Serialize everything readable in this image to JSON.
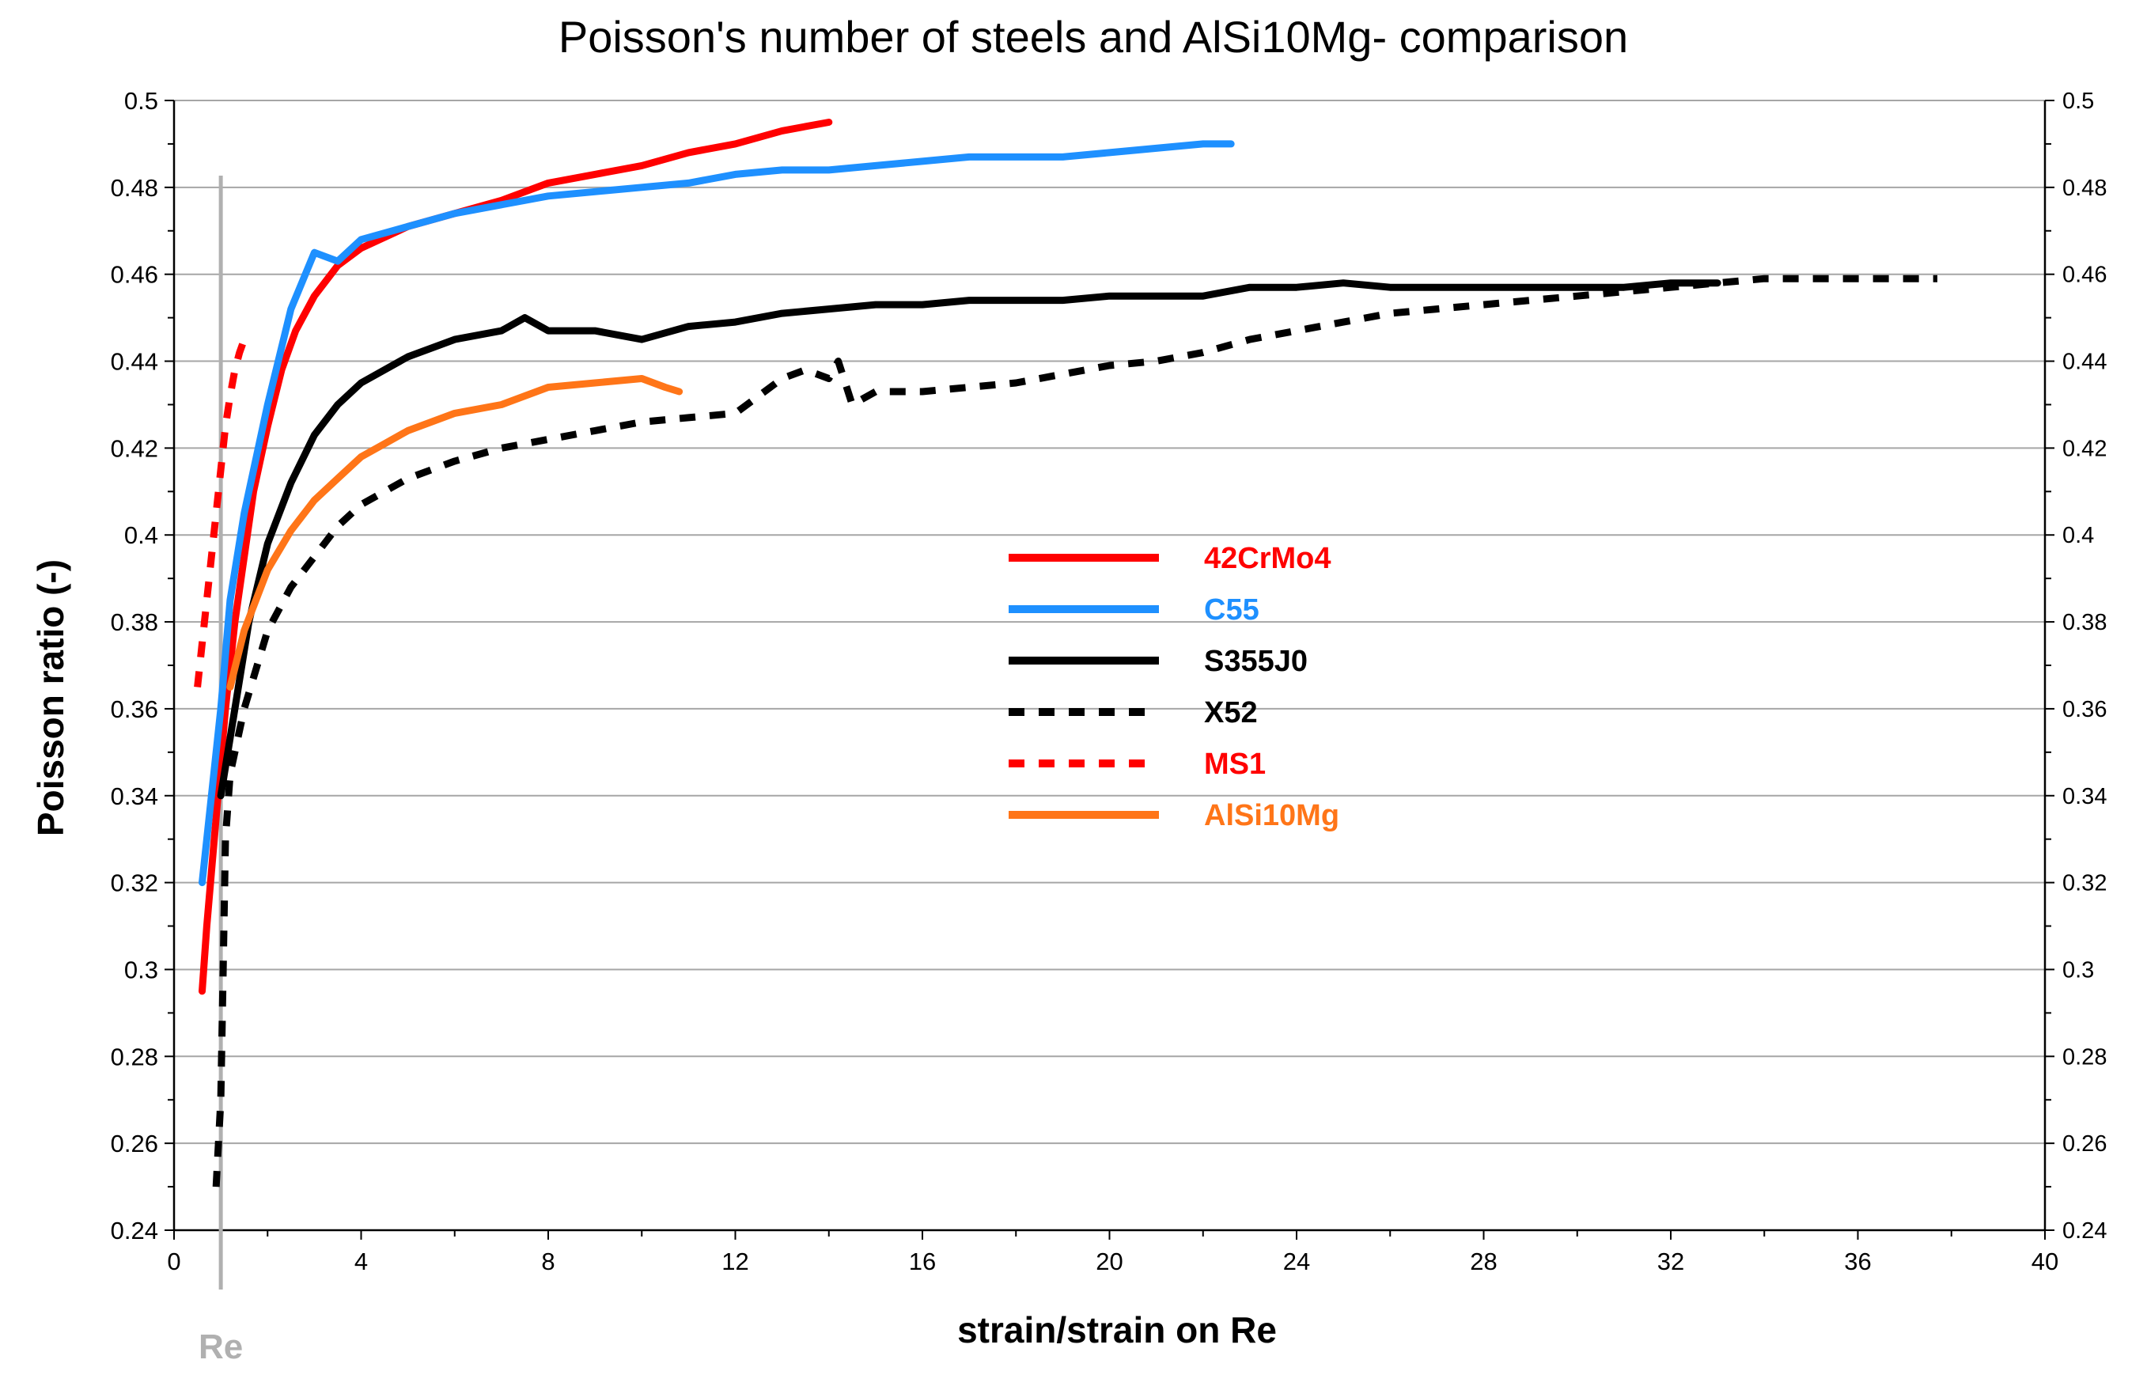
{
  "chart_data": {
    "type": "line",
    "title": "Poisson's number of steels and AlSi10Mg- comparison",
    "xlabel": "strain/strain on Re",
    "ylabel": "Poisson ratio (-)",
    "xlim": [
      0,
      40
    ],
    "ylim": [
      0.24,
      0.5
    ],
    "x_ticks": [
      "0",
      "4",
      "8",
      "12",
      "16",
      "20",
      "24",
      "28",
      "32",
      "36",
      "40"
    ],
    "y_ticks_left": [
      "0.24",
      "0.26",
      "0.28",
      "0.3",
      "0.32",
      "0.34",
      "0.36",
      "0.38",
      "0.4",
      "0.42",
      "0.44",
      "0.46",
      "0.48",
      "0.5"
    ],
    "y_ticks_right": [
      "0.24",
      "0.26",
      "0.28",
      "0.3",
      "0.32",
      "0.34",
      "0.36",
      "0.38",
      "0.4",
      "0.42",
      "0.44",
      "0.46",
      "0.48",
      "0.5"
    ],
    "grid": "horizontal",
    "legend_position": "center",
    "reference_line": {
      "label": "Re",
      "x": 1.0,
      "color": "#b0b0b0"
    },
    "series": [
      {
        "name": "42CrMo4",
        "color": "#ff0000",
        "dash": "solid",
        "points": [
          [
            0.6,
            0.295
          ],
          [
            0.7,
            0.31
          ],
          [
            0.9,
            0.335
          ],
          [
            1.1,
            0.36
          ],
          [
            1.3,
            0.38
          ],
          [
            1.5,
            0.395
          ],
          [
            1.7,
            0.41
          ],
          [
            2.0,
            0.425
          ],
          [
            2.3,
            0.438
          ],
          [
            2.6,
            0.447
          ],
          [
            3.0,
            0.455
          ],
          [
            3.5,
            0.462
          ],
          [
            4.0,
            0.466
          ],
          [
            5.0,
            0.471
          ],
          [
            6.0,
            0.474
          ],
          [
            7.0,
            0.477
          ],
          [
            8.0,
            0.481
          ],
          [
            9.0,
            0.483
          ],
          [
            10.0,
            0.485
          ],
          [
            11.0,
            0.488
          ],
          [
            12.0,
            0.49
          ],
          [
            13.0,
            0.493
          ],
          [
            14.0,
            0.495
          ]
        ]
      },
      {
        "name": "C55",
        "color": "#1e90ff",
        "dash": "solid",
        "points": [
          [
            0.6,
            0.32
          ],
          [
            0.8,
            0.34
          ],
          [
            1.0,
            0.36
          ],
          [
            1.2,
            0.385
          ],
          [
            1.5,
            0.405
          ],
          [
            2.0,
            0.43
          ],
          [
            2.5,
            0.452
          ],
          [
            3.0,
            0.465
          ],
          [
            3.5,
            0.463
          ],
          [
            4.0,
            0.468
          ],
          [
            5.0,
            0.471
          ],
          [
            6.0,
            0.474
          ],
          [
            7.0,
            0.476
          ],
          [
            8.0,
            0.478
          ],
          [
            9.0,
            0.479
          ],
          [
            10.0,
            0.48
          ],
          [
            11.0,
            0.481
          ],
          [
            12.0,
            0.483
          ],
          [
            13.0,
            0.484
          ],
          [
            14.0,
            0.484
          ],
          [
            15.0,
            0.485
          ],
          [
            16.0,
            0.486
          ],
          [
            17.0,
            0.487
          ],
          [
            18.0,
            0.487
          ],
          [
            19.0,
            0.487
          ],
          [
            20.0,
            0.488
          ],
          [
            21.0,
            0.489
          ],
          [
            22.0,
            0.49
          ],
          [
            22.6,
            0.49
          ]
        ]
      },
      {
        "name": "S355J0",
        "color": "#000000",
        "dash": "solid",
        "points": [
          [
            1.0,
            0.34
          ],
          [
            1.3,
            0.36
          ],
          [
            1.6,
            0.38
          ],
          [
            2.0,
            0.398
          ],
          [
            2.5,
            0.412
          ],
          [
            3.0,
            0.423
          ],
          [
            3.5,
            0.43
          ],
          [
            4.0,
            0.435
          ],
          [
            5.0,
            0.441
          ],
          [
            6.0,
            0.445
          ],
          [
            7.0,
            0.447
          ],
          [
            7.5,
            0.45
          ],
          [
            8.0,
            0.447
          ],
          [
            9.0,
            0.447
          ],
          [
            10.0,
            0.445
          ],
          [
            11.0,
            0.448
          ],
          [
            12.0,
            0.449
          ],
          [
            13.0,
            0.451
          ],
          [
            14.0,
            0.452
          ],
          [
            15.0,
            0.453
          ],
          [
            16.0,
            0.453
          ],
          [
            17.0,
            0.454
          ],
          [
            18.0,
            0.454
          ],
          [
            19.0,
            0.454
          ],
          [
            20.0,
            0.455
          ],
          [
            21.0,
            0.455
          ],
          [
            22.0,
            0.455
          ],
          [
            23.0,
            0.457
          ],
          [
            24.0,
            0.457
          ],
          [
            25.0,
            0.458
          ],
          [
            26.0,
            0.457
          ],
          [
            27.0,
            0.457
          ],
          [
            28.0,
            0.457
          ],
          [
            29.0,
            0.457
          ],
          [
            30.0,
            0.457
          ],
          [
            31.0,
            0.457
          ],
          [
            32.0,
            0.458
          ],
          [
            33.0,
            0.458
          ]
        ]
      },
      {
        "name": "X52",
        "color": "#000000",
        "dash": "dotted",
        "points": [
          [
            0.9,
            0.25
          ],
          [
            1.0,
            0.27
          ],
          [
            1.05,
            0.3
          ],
          [
            1.1,
            0.33
          ],
          [
            1.2,
            0.345
          ],
          [
            1.5,
            0.36
          ],
          [
            2.0,
            0.378
          ],
          [
            2.5,
            0.388
          ],
          [
            3.0,
            0.395
          ],
          [
            3.5,
            0.402
          ],
          [
            4.0,
            0.407
          ],
          [
            5.0,
            0.413
          ],
          [
            6.0,
            0.417
          ],
          [
            7.0,
            0.42
          ],
          [
            8.0,
            0.422
          ],
          [
            9.0,
            0.424
          ],
          [
            10.0,
            0.426
          ],
          [
            11.0,
            0.427
          ],
          [
            12.0,
            0.428
          ],
          [
            12.5,
            0.432
          ],
          [
            13.0,
            0.436
          ],
          [
            13.5,
            0.438
          ],
          [
            14.0,
            0.436
          ],
          [
            14.2,
            0.44
          ],
          [
            14.5,
            0.43
          ],
          [
            15.0,
            0.433
          ],
          [
            16.0,
            0.433
          ],
          [
            17.0,
            0.434
          ],
          [
            18.0,
            0.435
          ],
          [
            19.0,
            0.437
          ],
          [
            20.0,
            0.439
          ],
          [
            21.0,
            0.44
          ],
          [
            22.0,
            0.442
          ],
          [
            23.0,
            0.445
          ],
          [
            24.0,
            0.447
          ],
          [
            25.0,
            0.449
          ],
          [
            26.0,
            0.451
          ],
          [
            27.0,
            0.452
          ],
          [
            28.0,
            0.453
          ],
          [
            29.0,
            0.454
          ],
          [
            30.0,
            0.455
          ],
          [
            31.0,
            0.456
          ],
          [
            32.0,
            0.457
          ],
          [
            33.0,
            0.458
          ],
          [
            34.0,
            0.459
          ],
          [
            35.0,
            0.459
          ],
          [
            36.0,
            0.459
          ],
          [
            37.0,
            0.459
          ],
          [
            37.7,
            0.459
          ]
        ]
      },
      {
        "name": "MS1",
        "color": "#ff0000",
        "dash": "dotted",
        "points": [
          [
            0.5,
            0.365
          ],
          [
            0.6,
            0.375
          ],
          [
            0.7,
            0.385
          ],
          [
            0.8,
            0.395
          ],
          [
            0.9,
            0.405
          ],
          [
            1.0,
            0.415
          ],
          [
            1.1,
            0.425
          ],
          [
            1.2,
            0.432
          ],
          [
            1.3,
            0.438
          ],
          [
            1.4,
            0.442
          ],
          [
            1.5,
            0.445
          ]
        ]
      },
      {
        "name": "AlSi10Mg",
        "color": "#ff7518",
        "dash": "solid",
        "points": [
          [
            1.2,
            0.365
          ],
          [
            1.5,
            0.378
          ],
          [
            2.0,
            0.392
          ],
          [
            2.5,
            0.401
          ],
          [
            3.0,
            0.408
          ],
          [
            3.5,
            0.413
          ],
          [
            4.0,
            0.418
          ],
          [
            4.5,
            0.421
          ],
          [
            5.0,
            0.424
          ],
          [
            6.0,
            0.428
          ],
          [
            7.0,
            0.43
          ],
          [
            8.0,
            0.434
          ],
          [
            9.0,
            0.435
          ],
          [
            10.0,
            0.436
          ],
          [
            10.5,
            0.434
          ],
          [
            10.8,
            0.433
          ]
        ]
      }
    ]
  }
}
